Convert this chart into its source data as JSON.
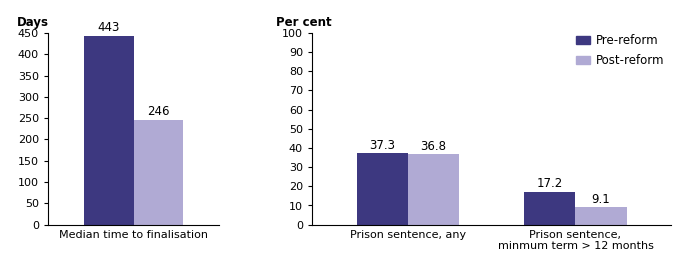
{
  "left_chart": {
    "ylabel": "Days",
    "categories": [
      "Median time to finalisation"
    ],
    "pre_reform": [
      443
    ],
    "post_reform": [
      246
    ],
    "ylim": [
      0,
      450
    ],
    "yticks": [
      0,
      50,
      100,
      150,
      200,
      250,
      300,
      350,
      400,
      450
    ]
  },
  "right_chart": {
    "ylabel": "Per cent",
    "categories": [
      "Prison sentence, any",
      "Prison sentence,\nminmum term > 12 months"
    ],
    "pre_reform": [
      37.3,
      17.2
    ],
    "post_reform": [
      36.8,
      9.1
    ],
    "ylim": [
      0,
      100
    ],
    "yticks": [
      0,
      10,
      20,
      30,
      40,
      50,
      60,
      70,
      80,
      90,
      100
    ]
  },
  "colors": {
    "pre_reform": "#3d3880",
    "post_reform": "#b0aad4"
  },
  "legend": {
    "pre_reform_label": "Pre-reform",
    "post_reform_label": "Post-reform"
  },
  "bar_width": 0.32,
  "label_fontsize": 8.0,
  "tick_fontsize": 8.0,
  "ylabel_fontsize": 8.5,
  "annotation_fontsize": 8.5
}
